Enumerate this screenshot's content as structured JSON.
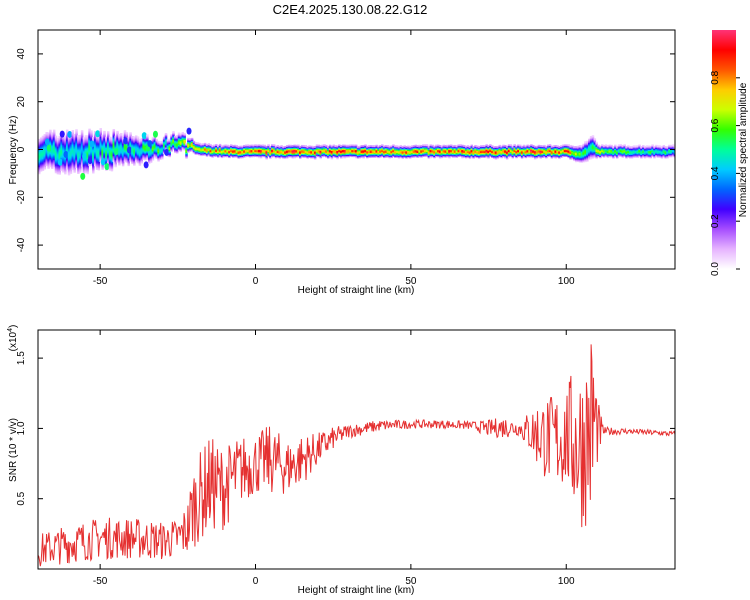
{
  "title": "C2E4.2025.130.08.22.G12",
  "chart_data": [
    {
      "type": "heatmap",
      "xlabel": "Height of straight line (km)",
      "ylabel": "Frequency (Hz)",
      "xlim": [
        -70,
        135
      ],
      "ylim": [
        -50,
        50
      ],
      "xticks": [
        -50,
        0,
        50,
        100
      ],
      "yticks": [
        -40,
        -20,
        0,
        20,
        40
      ],
      "colorbar": {
        "label": "Normalized spectral amplitude",
        "ticks": [
          "0.0",
          "0.2",
          "0.4",
          "0.6",
          "0.8"
        ],
        "range": [
          0,
          1
        ],
        "colors": [
          "#ffffff",
          "#e6b3ff",
          "#a64dff",
          "#4000ff",
          "#0066ff",
          "#00ccff",
          "#00ff99",
          "#33ff00",
          "#ccff00",
          "#ffcc00",
          "#ff5500",
          "#ff0000",
          "#ff3377"
        ]
      },
      "ridge": {
        "x": [
          -70,
          -60,
          -50,
          -40,
          -30,
          -25,
          -20,
          -10,
          0,
          20,
          50,
          80,
          100,
          105,
          108,
          110,
          120,
          135
        ],
        "freq": [
          -1,
          -2,
          0,
          -1,
          1,
          2,
          0,
          -1,
          -1,
          -1,
          -1,
          -1,
          -1,
          -2,
          1,
          -1,
          -1,
          -1
        ],
        "halfwidth": [
          6,
          7,
          6,
          5,
          3,
          3,
          2,
          2,
          2,
          2,
          2,
          2,
          2,
          3,
          4,
          2,
          2,
          2
        ],
        "peak_amplitude": [
          0.5,
          0.5,
          0.55,
          0.55,
          0.6,
          0.65,
          0.8,
          0.9,
          0.95,
          0.95,
          0.9,
          0.95,
          0.95,
          0.6,
          0.55,
          0.7,
          0.6,
          0.55
        ]
      }
    },
    {
      "type": "line",
      "xlabel": "Height of straight line (km)",
      "ylabel": "SNR (10 * v/v)",
      "y_multiplier": "(x10",
      "y_multiplier_exp": "4",
      "y_multiplier_close": ")",
      "xlim": [
        -70,
        135
      ],
      "ylim": [
        0.0,
        1.7
      ],
      "xticks": [
        -50,
        0,
        50,
        100
      ],
      "yticks": [
        "0.5",
        "1.0",
        "1.5"
      ],
      "line_color": "#e53030",
      "series": [
        {
          "x": [
            -70,
            -60,
            -50,
            -40,
            -30,
            -25,
            -22,
            -20,
            -15,
            -10,
            -5,
            0,
            5,
            10,
            15,
            20,
            25,
            30,
            40,
            50,
            60,
            70,
            75,
            80,
            85,
            88,
            92,
            96,
            100,
            103,
            105,
            107,
            108,
            109,
            110,
            112,
            120,
            135
          ],
          "y": [
            0.13,
            0.18,
            0.22,
            0.22,
            0.2,
            0.22,
            0.28,
            0.45,
            0.6,
            0.58,
            0.7,
            0.75,
            0.78,
            0.72,
            0.78,
            0.85,
            0.93,
            0.98,
            1.02,
            1.03,
            1.03,
            1.02,
            1.0,
            1.01,
            1.0,
            0.98,
            0.95,
            0.9,
            0.95,
            0.9,
            0.88,
            0.95,
            1.0,
            1.05,
            0.98,
            0.98,
            0.98,
            0.96
          ],
          "noise": [
            0.12,
            0.14,
            0.15,
            0.15,
            0.14,
            0.14,
            0.2,
            0.3,
            0.35,
            0.3,
            0.25,
            0.22,
            0.25,
            0.2,
            0.18,
            0.12,
            0.08,
            0.05,
            0.04,
            0.03,
            0.03,
            0.03,
            0.06,
            0.08,
            0.05,
            0.15,
            0.28,
            0.35,
            0.38,
            0.55,
            0.6,
            0.65,
            0.75,
            0.7,
            0.25,
            0.03,
            0.02,
            0.02
          ]
        }
      ]
    }
  ]
}
